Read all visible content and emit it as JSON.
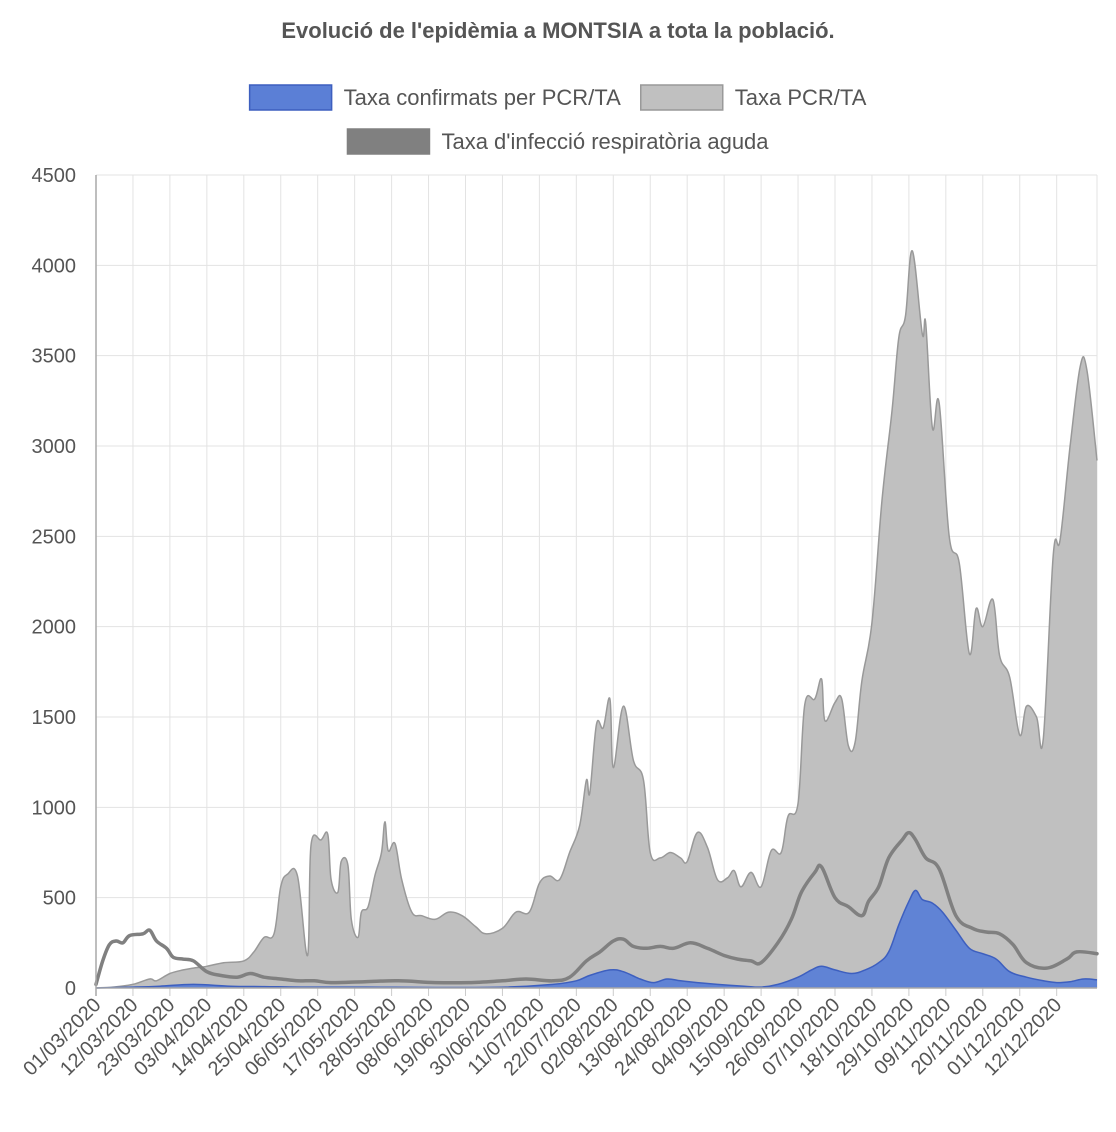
{
  "chart_data": {
    "type": "area",
    "title": "Evolució de l'epidèmia a MONTSIA a tota la població.",
    "xlabel": "",
    "ylabel": "",
    "ylim": [
      0,
      4500
    ],
    "yticks": [
      0,
      500,
      1000,
      1500,
      2000,
      2500,
      3000,
      3500,
      4000,
      4500
    ],
    "grid": true,
    "legend_position": "top",
    "x_start": "01/03/2020",
    "x_end": "24/12/2020",
    "xtick_labels": [
      "01/03/2020",
      "12/03/2020",
      "23/03/2020",
      "03/04/2020",
      "14/04/2020",
      "25/04/2020",
      "06/05/2020",
      "17/05/2020",
      "28/05/2020",
      "08/06/2020",
      "19/06/2020",
      "30/06/2020",
      "11/07/2020",
      "22/07/2020",
      "02/08/2020",
      "13/08/2020",
      "24/08/2020",
      "04/09/2020",
      "15/09/2020",
      "26/09/2020",
      "07/10/2020",
      "18/10/2020",
      "29/10/2020",
      "09/11/2020",
      "20/11/2020",
      "01/12/2020",
      "12/12/2020"
    ],
    "series": [
      {
        "name": "Taxa PCR/TA",
        "render": "area",
        "color": "#c0c0c0",
        "border": "#999999",
        "points": [
          [
            "01/03/2020",
            0
          ],
          [
            "06/03/2020",
            5
          ],
          [
            "12/03/2020",
            20
          ],
          [
            "17/03/2020",
            50
          ],
          [
            "19/03/2020",
            40
          ],
          [
            "23/03/2020",
            80
          ],
          [
            "27/03/2020",
            100
          ],
          [
            "30/03/2020",
            110
          ],
          [
            "03/04/2020",
            120
          ],
          [
            "08/04/2020",
            140
          ],
          [
            "14/04/2020",
            150
          ],
          [
            "17/04/2020",
            200
          ],
          [
            "20/04/2020",
            280
          ],
          [
            "23/04/2020",
            300
          ],
          [
            "25/04/2020",
            560
          ],
          [
            "27/04/2020",
            630
          ],
          [
            "30/04/2020",
            620
          ],
          [
            "03/05/2020",
            180
          ],
          [
            "04/05/2020",
            790
          ],
          [
            "07/05/2020",
            820
          ],
          [
            "09/05/2020",
            850
          ],
          [
            "10/05/2020",
            600
          ],
          [
            "12/05/2020",
            530
          ],
          [
            "13/05/2020",
            700
          ],
          [
            "15/05/2020",
            680
          ],
          [
            "16/05/2020",
            380
          ],
          [
            "18/05/2020",
            280
          ],
          [
            "19/05/2020",
            420
          ],
          [
            "21/05/2020",
            450
          ],
          [
            "23/05/2020",
            620
          ],
          [
            "25/05/2020",
            750
          ],
          [
            "26/05/2020",
            920
          ],
          [
            "27/05/2020",
            760
          ],
          [
            "29/05/2020",
            800
          ],
          [
            "31/05/2020",
            600
          ],
          [
            "03/06/2020",
            420
          ],
          [
            "06/06/2020",
            400
          ],
          [
            "10/06/2020",
            380
          ],
          [
            "14/06/2020",
            420
          ],
          [
            "18/06/2020",
            400
          ],
          [
            "22/06/2020",
            340
          ],
          [
            "25/06/2020",
            300
          ],
          [
            "30/06/2020",
            330
          ],
          [
            "04/07/2020",
            420
          ],
          [
            "08/07/2020",
            420
          ],
          [
            "11/07/2020",
            580
          ],
          [
            "14/07/2020",
            620
          ],
          [
            "17/07/2020",
            600
          ],
          [
            "20/07/2020",
            750
          ],
          [
            "23/07/2020",
            900
          ],
          [
            "25/07/2020",
            1150
          ],
          [
            "26/07/2020",
            1080
          ],
          [
            "28/07/2020",
            1460
          ],
          [
            "30/07/2020",
            1440
          ],
          [
            "01/08/2020",
            1600
          ],
          [
            "02/08/2020",
            1220
          ],
          [
            "05/08/2020",
            1560
          ],
          [
            "08/08/2020",
            1260
          ],
          [
            "11/08/2020",
            1150
          ],
          [
            "13/08/2020",
            750
          ],
          [
            "16/08/2020",
            720
          ],
          [
            "19/08/2020",
            750
          ],
          [
            "22/08/2020",
            720
          ],
          [
            "24/08/2020",
            700
          ],
          [
            "27/08/2020",
            860
          ],
          [
            "30/08/2020",
            780
          ],
          [
            "02/09/2020",
            600
          ],
          [
            "05/09/2020",
            610
          ],
          [
            "07/09/2020",
            650
          ],
          [
            "09/09/2020",
            560
          ],
          [
            "12/09/2020",
            640
          ],
          [
            "15/09/2020",
            560
          ],
          [
            "18/09/2020",
            760
          ],
          [
            "21/09/2020",
            750
          ],
          [
            "23/09/2020",
            950
          ],
          [
            "26/09/2020",
            1020
          ],
          [
            "28/09/2020",
            1570
          ],
          [
            "01/10/2020",
            1600
          ],
          [
            "03/10/2020",
            1710
          ],
          [
            "04/10/2020",
            1480
          ],
          [
            "07/10/2020",
            1580
          ],
          [
            "09/10/2020",
            1600
          ],
          [
            "11/10/2020",
            1340
          ],
          [
            "13/10/2020",
            1360
          ],
          [
            "15/10/2020",
            1700
          ],
          [
            "18/10/2020",
            2020
          ],
          [
            "21/10/2020",
            2700
          ],
          [
            "24/10/2020",
            3200
          ],
          [
            "26/10/2020",
            3600
          ],
          [
            "28/10/2020",
            3720
          ],
          [
            "30/10/2020",
            4080
          ],
          [
            "02/11/2020",
            3620
          ],
          [
            "03/11/2020",
            3680
          ],
          [
            "05/11/2020",
            3100
          ],
          [
            "07/11/2020",
            3240
          ],
          [
            "10/11/2020",
            2500
          ],
          [
            "13/11/2020",
            2350
          ],
          [
            "16/11/2020",
            1850
          ],
          [
            "18/11/2020",
            2100
          ],
          [
            "20/11/2020",
            2000
          ],
          [
            "23/11/2020",
            2150
          ],
          [
            "25/11/2020",
            1840
          ],
          [
            "28/11/2020",
            1720
          ],
          [
            "01/12/2020",
            1400
          ],
          [
            "03/12/2020",
            1560
          ],
          [
            "06/12/2020",
            1500
          ],
          [
            "08/12/2020",
            1380
          ],
          [
            "11/12/2020",
            2400
          ],
          [
            "13/12/2020",
            2480
          ],
          [
            "16/12/2020",
            3000
          ],
          [
            "19/12/2020",
            3440
          ],
          [
            "21/12/2020",
            3420
          ],
          [
            "24/12/2020",
            2920
          ]
        ]
      },
      {
        "name": "Taxa confirmats per PCR/TA",
        "render": "area",
        "color": "#5b7fd6",
        "border": "#3d5fbf",
        "points": [
          [
            "01/03/2020",
            0
          ],
          [
            "12/03/2020",
            5
          ],
          [
            "20/03/2020",
            10
          ],
          [
            "30/03/2020",
            20
          ],
          [
            "10/04/2020",
            10
          ],
          [
            "20/04/2020",
            8
          ],
          [
            "01/05/2020",
            5
          ],
          [
            "20/05/2020",
            5
          ],
          [
            "10/06/2020",
            3
          ],
          [
            "01/07/2020",
            5
          ],
          [
            "15/07/2020",
            20
          ],
          [
            "22/07/2020",
            40
          ],
          [
            "26/07/2020",
            70
          ],
          [
            "01/08/2020",
            100
          ],
          [
            "05/08/2020",
            90
          ],
          [
            "10/08/2020",
            50
          ],
          [
            "14/08/2020",
            30
          ],
          [
            "18/08/2020",
            50
          ],
          [
            "22/08/2020",
            40
          ],
          [
            "27/08/2020",
            30
          ],
          [
            "02/09/2020",
            20
          ],
          [
            "10/09/2020",
            10
          ],
          [
            "15/09/2020",
            5
          ],
          [
            "20/09/2020",
            20
          ],
          [
            "26/09/2020",
            60
          ],
          [
            "30/09/2020",
            100
          ],
          [
            "03/10/2020",
            120
          ],
          [
            "07/10/2020",
            100
          ],
          [
            "12/10/2020",
            80
          ],
          [
            "16/10/2020",
            100
          ],
          [
            "20/10/2020",
            140
          ],
          [
            "23/10/2020",
            200
          ],
          [
            "26/10/2020",
            350
          ],
          [
            "29/10/2020",
            480
          ],
          [
            "31/10/2020",
            540
          ],
          [
            "02/11/2020",
            490
          ],
          [
            "05/11/2020",
            470
          ],
          [
            "08/11/2020",
            420
          ],
          [
            "12/11/2020",
            320
          ],
          [
            "16/11/2020",
            220
          ],
          [
            "20/11/2020",
            190
          ],
          [
            "24/11/2020",
            160
          ],
          [
            "28/11/2020",
            90
          ],
          [
            "03/12/2020",
            60
          ],
          [
            "08/12/2020",
            40
          ],
          [
            "12/12/2020",
            30
          ],
          [
            "16/12/2020",
            35
          ],
          [
            "20/12/2020",
            50
          ],
          [
            "24/12/2020",
            45
          ]
        ]
      },
      {
        "name": "Taxa d'infecció respiratòria aguda",
        "render": "line",
        "color": "#808080",
        "border": "#808080",
        "points": [
          [
            "01/03/2020",
            20
          ],
          [
            "03/03/2020",
            150
          ],
          [
            "05/03/2020",
            240
          ],
          [
            "07/03/2020",
            260
          ],
          [
            "09/03/2020",
            250
          ],
          [
            "11/03/2020",
            290
          ],
          [
            "15/03/2020",
            300
          ],
          [
            "17/03/2020",
            320
          ],
          [
            "19/03/2020",
            260
          ],
          [
            "22/03/2020",
            220
          ],
          [
            "24/03/2020",
            170
          ],
          [
            "27/03/2020",
            160
          ],
          [
            "30/03/2020",
            150
          ],
          [
            "03/04/2020",
            90
          ],
          [
            "07/04/2020",
            70
          ],
          [
            "12/04/2020",
            60
          ],
          [
            "16/04/2020",
            80
          ],
          [
            "20/04/2020",
            60
          ],
          [
            "25/04/2020",
            50
          ],
          [
            "30/04/2020",
            40
          ],
          [
            "05/05/2020",
            40
          ],
          [
            "10/05/2020",
            30
          ],
          [
            "20/05/2020",
            35
          ],
          [
            "30/05/2020",
            40
          ],
          [
            "10/06/2020",
            30
          ],
          [
            "20/06/2020",
            30
          ],
          [
            "30/06/2020",
            40
          ],
          [
            "07/07/2020",
            50
          ],
          [
            "15/07/2020",
            40
          ],
          [
            "20/07/2020",
            60
          ],
          [
            "25/07/2020",
            150
          ],
          [
            "29/07/2020",
            200
          ],
          [
            "02/08/2020",
            260
          ],
          [
            "05/08/2020",
            270
          ],
          [
            "08/08/2020",
            230
          ],
          [
            "12/08/2020",
            220
          ],
          [
            "16/08/2020",
            230
          ],
          [
            "20/08/2020",
            220
          ],
          [
            "25/08/2020",
            250
          ],
          [
            "30/08/2020",
            220
          ],
          [
            "04/09/2020",
            180
          ],
          [
            "08/09/2020",
            160
          ],
          [
            "12/09/2020",
            150
          ],
          [
            "15/09/2020",
            140
          ],
          [
            "20/09/2020",
            250
          ],
          [
            "24/09/2020",
            380
          ],
          [
            "27/09/2020",
            530
          ],
          [
            "01/10/2020",
            640
          ],
          [
            "03/10/2020",
            670
          ],
          [
            "07/10/2020",
            500
          ],
          [
            "11/10/2020",
            450
          ],
          [
            "15/10/2020",
            400
          ],
          [
            "17/10/2020",
            480
          ],
          [
            "20/10/2020",
            560
          ],
          [
            "23/10/2020",
            720
          ],
          [
            "27/10/2020",
            820
          ],
          [
            "29/10/2020",
            860
          ],
          [
            "31/10/2020",
            820
          ],
          [
            "03/11/2020",
            720
          ],
          [
            "07/11/2020",
            660
          ],
          [
            "12/11/2020",
            400
          ],
          [
            "17/11/2020",
            330
          ],
          [
            "21/11/2020",
            310
          ],
          [
            "25/11/2020",
            300
          ],
          [
            "29/11/2020",
            240
          ],
          [
            "03/12/2020",
            140
          ],
          [
            "09/12/2020",
            110
          ],
          [
            "15/12/2020",
            160
          ],
          [
            "18/12/2020",
            200
          ],
          [
            "24/12/2020",
            190
          ]
        ]
      }
    ]
  }
}
